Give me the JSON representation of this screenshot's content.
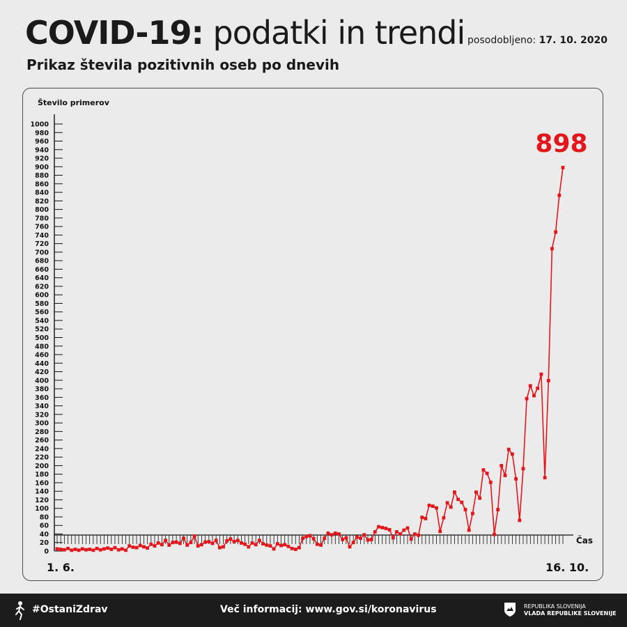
{
  "header": {
    "title_bold": "COVID-19:",
    "title_light": "podatki in trendi",
    "updated_label": "posodobljeno:",
    "updated_date": "17. 10. 2020",
    "subtitle": "Prikaz števila pozitivnih oseb po dnevih"
  },
  "footer": {
    "hashtag": "#OstaniZdrav",
    "more_info": "Več informacij: www.gov.si/koronavirus",
    "gov_line1": "REPUBLIKA SLOVENIJA",
    "gov_line2": "VLADA REPUBLIKE SLOVENIJE"
  },
  "colors": {
    "series": "#e3161b",
    "axis": "#111111",
    "background": "#ebebeb",
    "footer": "#1c1c1c"
  },
  "chart_data": {
    "type": "line",
    "ylabel": "Število primerov",
    "xlabel": "Čas",
    "ylim": [
      0,
      1000
    ],
    "ytick_step": 20,
    "x_start_label": "1. 6.",
    "x_end_label": "16. 10.",
    "highlight_value": "898",
    "grid": false,
    "series": [
      {
        "values": [
          5,
          4,
          3,
          6,
          2,
          4,
          2,
          5,
          3,
          4,
          2,
          6,
          3,
          5,
          7,
          4,
          8,
          3,
          5,
          2,
          12,
          9,
          8,
          13,
          10,
          7,
          16,
          12,
          19,
          15,
          25,
          14,
          20,
          21,
          18,
          30,
          14,
          20,
          35,
          12,
          15,
          21,
          22,
          18,
          25,
          8,
          10,
          24,
          28,
          22,
          25,
          19,
          16,
          10,
          19,
          15,
          25,
          17,
          14,
          12,
          5,
          17,
          13,
          15,
          11,
          6,
          4,
          8,
          30,
          34,
          36,
          29,
          16,
          14,
          30,
          42,
          38,
          42,
          40,
          27,
          31,
          10,
          20,
          33,
          30,
          38,
          26,
          27,
          45,
          57,
          55,
          53,
          50,
          31,
          45,
          40,
          49,
          54,
          28,
          40,
          37,
          79,
          76,
          107,
          105,
          101,
          46,
          78,
          113,
          103,
          138,
          121,
          114,
          97,
          49,
          88,
          138,
          124,
          190,
          182,
          161,
          39,
          97,
          200,
          177,
          238,
          227,
          169,
          72,
          193,
          357,
          387,
          364,
          381,
          414,
          172,
          399,
          708,
          747,
          833,
          898
        ]
      }
    ]
  }
}
